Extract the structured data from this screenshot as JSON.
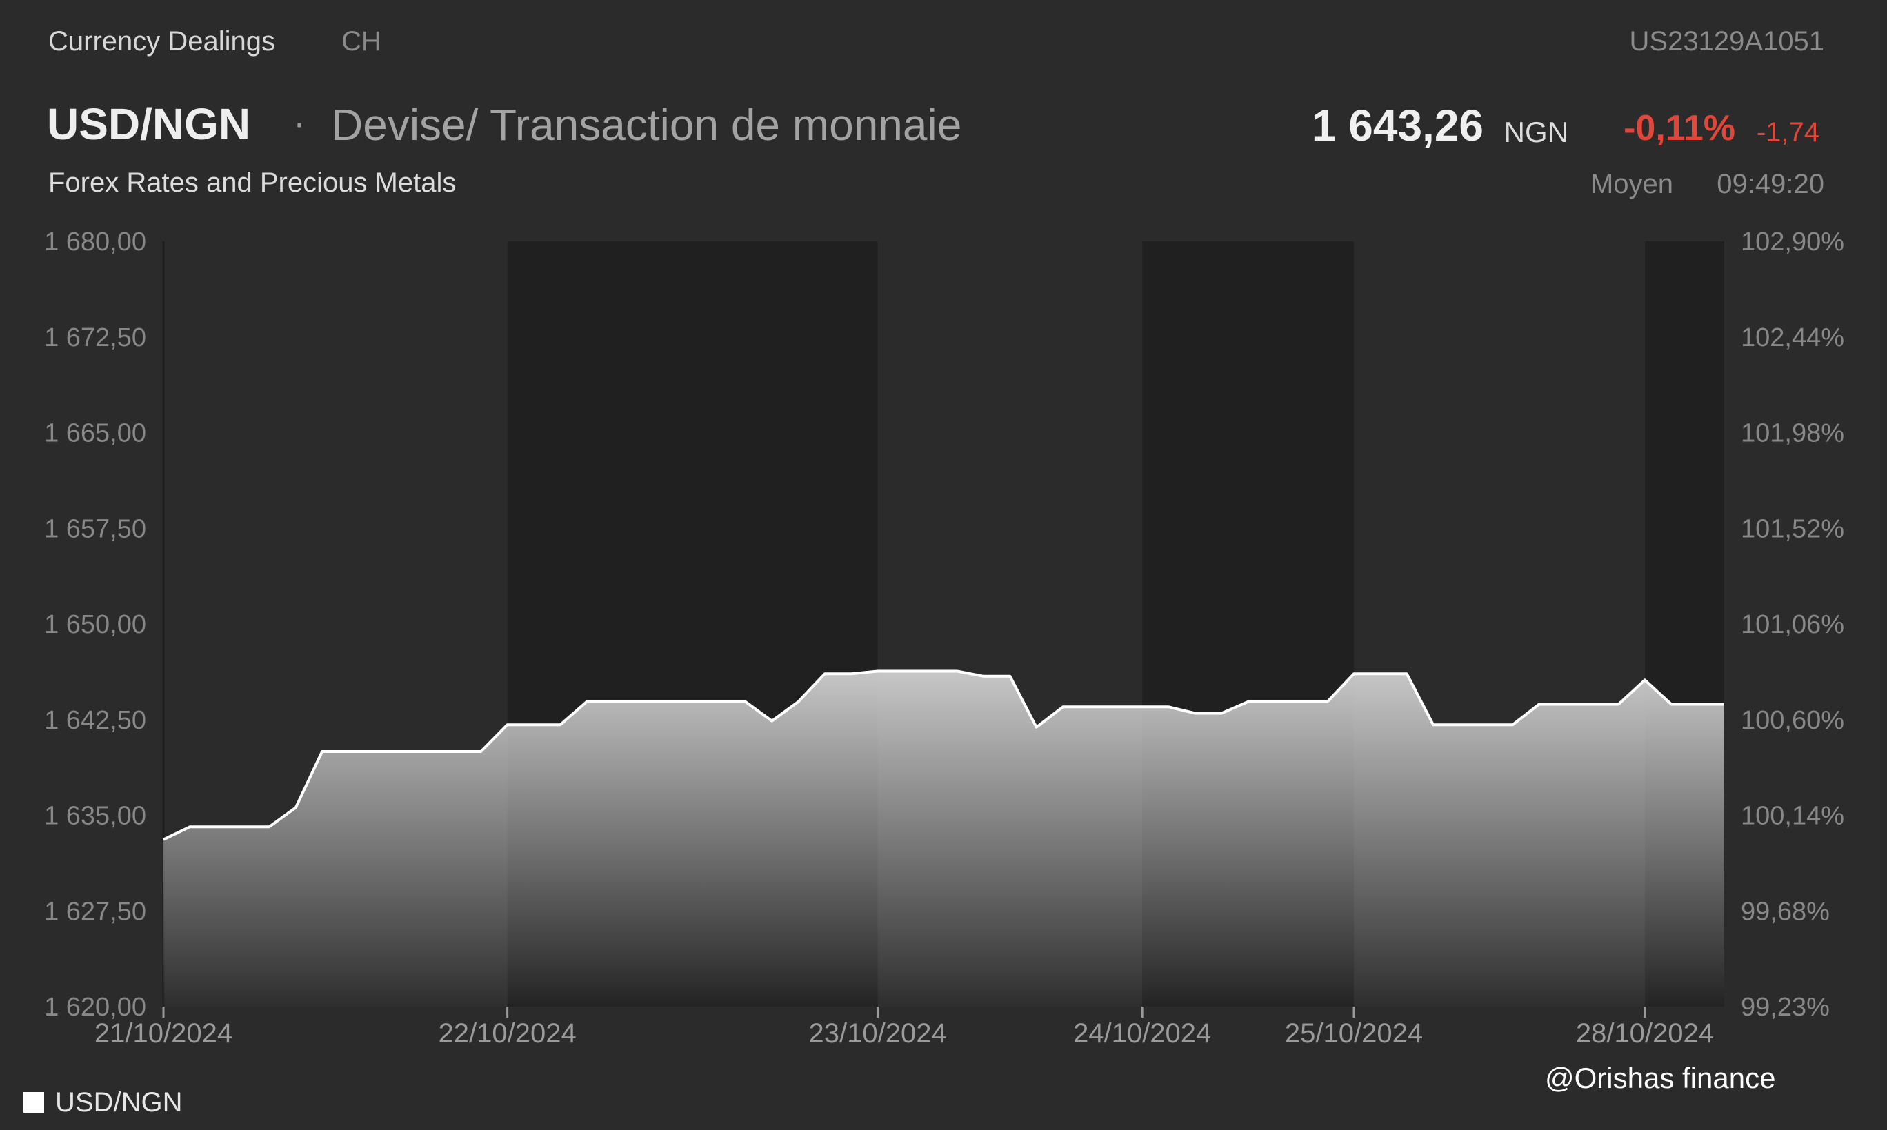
{
  "header": {
    "exchange": "Currency Dealings",
    "country": "CH",
    "isin": "US23129A1051",
    "pair": "USD/NGN",
    "separator": "·",
    "description": "Devise/ Transaction de monnaie",
    "subtitle": "Forex Rates and Precious Metals",
    "price": "1 643,26",
    "currency": "NGN",
    "change_pct": "-0,11%",
    "change_abs": "-1,74",
    "price_type": "Moyen",
    "time": "09:49:20"
  },
  "colors": {
    "background": "#2b2b2b",
    "shade": "#202020",
    "line": "#ffffff",
    "negative": "#e0473a"
  },
  "legend": {
    "label": "USD/NGN"
  },
  "watermark": "@Orishas finance",
  "chart_data": {
    "type": "area",
    "ylim": [
      1620,
      1680
    ],
    "y_ticks": [
      "1 680,00",
      "1 672,50",
      "1 665,00",
      "1 657,50",
      "1 650,00",
      "1 642,50",
      "1 635,00",
      "1 627,50",
      "1 620,00"
    ],
    "y2_ticks": [
      "102,90%",
      "102,44%",
      "101,98%",
      "101,52%",
      "101,06%",
      "100,60%",
      "100,14%",
      "99,68%",
      "99,23%"
    ],
    "x_ticks": [
      {
        "label": "21/10/2024",
        "x": 0
      },
      {
        "label": "22/10/2024",
        "x": 13
      },
      {
        "label": "23/10/2024",
        "x": 27
      },
      {
        "label": "24/10/2024",
        "x": 37
      },
      {
        "label": "25/10/2024",
        "x": 45
      },
      {
        "label": "28/10/2024",
        "x": 56
      }
    ],
    "x_max": 59,
    "shaded_ranges": [
      [
        13,
        27
      ],
      [
        37,
        45
      ],
      [
        56,
        59
      ]
    ],
    "series": [
      {
        "name": "USD/NGN",
        "x": [
          0,
          1,
          2,
          3,
          4,
          5,
          6,
          7,
          8,
          9,
          10,
          11,
          12,
          13,
          14,
          15,
          16,
          17,
          18,
          19,
          20,
          21,
          22,
          23,
          24,
          25,
          26,
          27,
          28,
          29,
          30,
          31,
          32,
          33,
          34,
          35,
          36,
          37,
          38,
          39,
          40,
          41,
          42,
          43,
          44,
          45,
          46,
          47,
          48,
          49,
          50,
          51,
          52,
          53,
          54,
          55,
          56,
          57,
          58,
          59
        ],
        "values": [
          1633.1,
          1634.1,
          1634.1,
          1634.1,
          1634.1,
          1635.6,
          1640.0,
          1640.0,
          1640.0,
          1640.0,
          1640.0,
          1640.0,
          1640.0,
          1642.1,
          1642.1,
          1642.1,
          1643.9,
          1643.9,
          1643.9,
          1643.9,
          1643.9,
          1643.9,
          1643.9,
          1642.4,
          1643.9,
          1646.1,
          1646.1,
          1646.3,
          1646.3,
          1646.3,
          1646.3,
          1645.9,
          1645.9,
          1641.9,
          1643.5,
          1643.5,
          1643.5,
          1643.5,
          1643.5,
          1643.0,
          1643.0,
          1643.9,
          1643.9,
          1643.9,
          1643.9,
          1646.1,
          1646.1,
          1646.1,
          1642.1,
          1642.1,
          1642.1,
          1642.1,
          1643.7,
          1643.7,
          1643.7,
          1643.7,
          1645.6,
          1643.7,
          1643.7,
          1643.7
        ]
      }
    ]
  }
}
